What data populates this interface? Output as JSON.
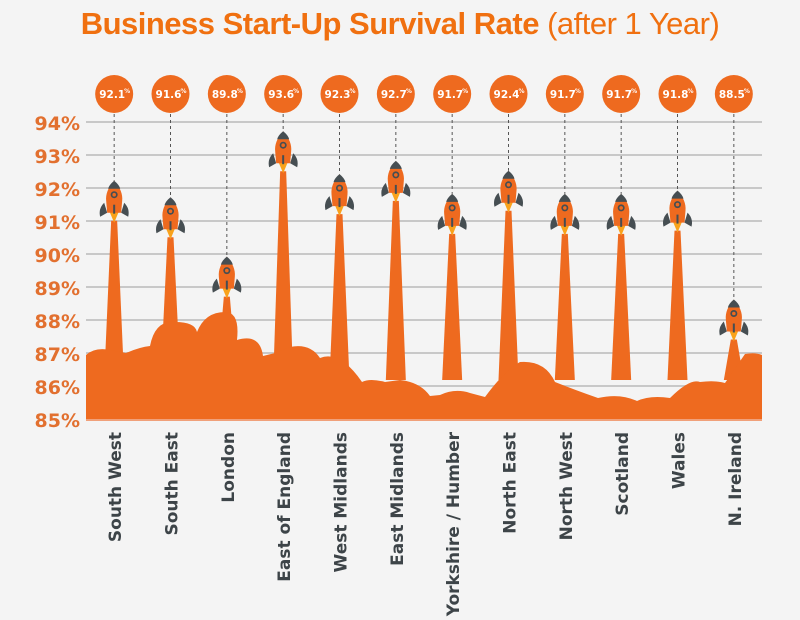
{
  "title": {
    "main": "Business Start-Up Survival Rate",
    "sub": "(after 1 Year)"
  },
  "colors": {
    "accent": "#ee6a1f",
    "title": "#f07010",
    "tick_label": "#e2702f",
    "category_label": "#3d4448",
    "grid": "#c8c8c8",
    "rocket_fin": "#464e52",
    "flame": "#f9a21b",
    "background": "#f4f4f4"
  },
  "icons": {
    "marker": "rocket-icon"
  },
  "chart_data": {
    "type": "bar",
    "title": "Business Start-Up Survival Rate (after 1 Year)",
    "xlabel": "",
    "ylabel": "",
    "ylim": [
      85,
      94
    ],
    "grid": true,
    "yticks": [
      94,
      93,
      92,
      91,
      90,
      89,
      88,
      87,
      86,
      85
    ],
    "ytick_labels": [
      "94%",
      "93%",
      "92%",
      "91%",
      "90%",
      "89%",
      "88%",
      "87%",
      "86%",
      "85%"
    ],
    "categories": [
      "South West",
      "South East",
      "London",
      "East of England",
      "West Midlands",
      "East Midlands",
      "Yorkshire / Humber",
      "North East",
      "North West",
      "Scotland",
      "Wales",
      "N. Ireland"
    ],
    "values": [
      92.1,
      91.6,
      89.8,
      93.6,
      92.3,
      92.7,
      91.7,
      92.4,
      91.7,
      91.7,
      91.8,
      88.5
    ],
    "data_labels": [
      "92.1",
      "91.6",
      "89.8",
      "93.6",
      "92.3",
      "92.7",
      "91.7",
      "92.4",
      "91.7",
      "91.7",
      "91.8",
      "88.5"
    ],
    "data_label_suffix": "%"
  }
}
